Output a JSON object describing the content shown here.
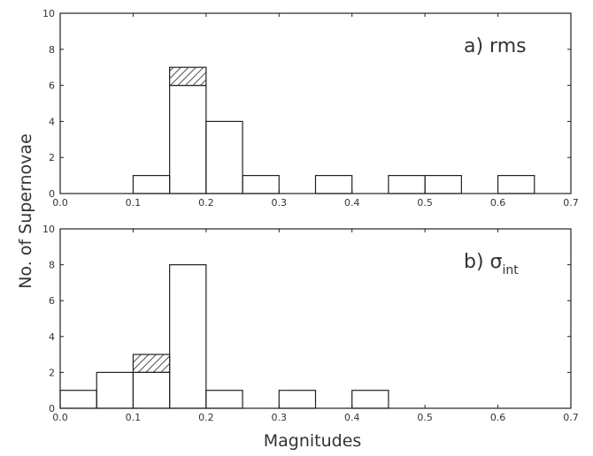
{
  "chart_data": [
    {
      "type": "bar",
      "panel_label": "a) rms",
      "panel_label_main": "a) rms",
      "panel_label_sub": "",
      "xlim": [
        0.0,
        0.7
      ],
      "ylim": [
        0,
        10
      ],
      "xticks": [
        "0.0",
        "0.1",
        "0.2",
        "0.3",
        "0.4",
        "0.5",
        "0.6",
        "0.7"
      ],
      "yticks": [
        "0",
        "2",
        "4",
        "6",
        "8",
        "10"
      ],
      "bin_width": 0.05,
      "bins": [
        {
          "x": 0.1,
          "count": 1,
          "hatched": 0
        },
        {
          "x": 0.15,
          "count": 6,
          "hatched": 1
        },
        {
          "x": 0.2,
          "count": 4,
          "hatched": 0
        },
        {
          "x": 0.25,
          "count": 1,
          "hatched": 0
        },
        {
          "x": 0.35,
          "count": 1,
          "hatched": 0
        },
        {
          "x": 0.45,
          "count": 1,
          "hatched": 0
        },
        {
          "x": 0.5,
          "count": 1,
          "hatched": 0
        },
        {
          "x": 0.6,
          "count": 1,
          "hatched": 0
        }
      ],
      "grid": false
    },
    {
      "type": "bar",
      "panel_label": "b) σint",
      "panel_label_main": "b) σ",
      "panel_label_sub": "int",
      "xlim": [
        0.0,
        0.7
      ],
      "ylim": [
        0,
        10
      ],
      "xticks": [
        "0.0",
        "0.1",
        "0.2",
        "0.3",
        "0.4",
        "0.5",
        "0.6",
        "0.7"
      ],
      "yticks": [
        "0",
        "2",
        "4",
        "6",
        "8",
        "10"
      ],
      "bin_width": 0.05,
      "bins": [
        {
          "x": 0.0,
          "count": 1,
          "hatched": 0
        },
        {
          "x": 0.05,
          "count": 2,
          "hatched": 0
        },
        {
          "x": 0.1,
          "count": 2,
          "hatched": 1
        },
        {
          "x": 0.15,
          "count": 8,
          "hatched": 0
        },
        {
          "x": 0.2,
          "count": 1,
          "hatched": 0
        },
        {
          "x": 0.3,
          "count": 1,
          "hatched": 0
        },
        {
          "x": 0.4,
          "count": 1,
          "hatched": 0
        }
      ],
      "grid": false
    }
  ],
  "labels": {
    "ylabel": "No. of Supernovae",
    "xlabel": "Magnitudes"
  },
  "colors": {
    "line": "#222222",
    "hatch": "#222222",
    "background": "#ffffff"
  }
}
